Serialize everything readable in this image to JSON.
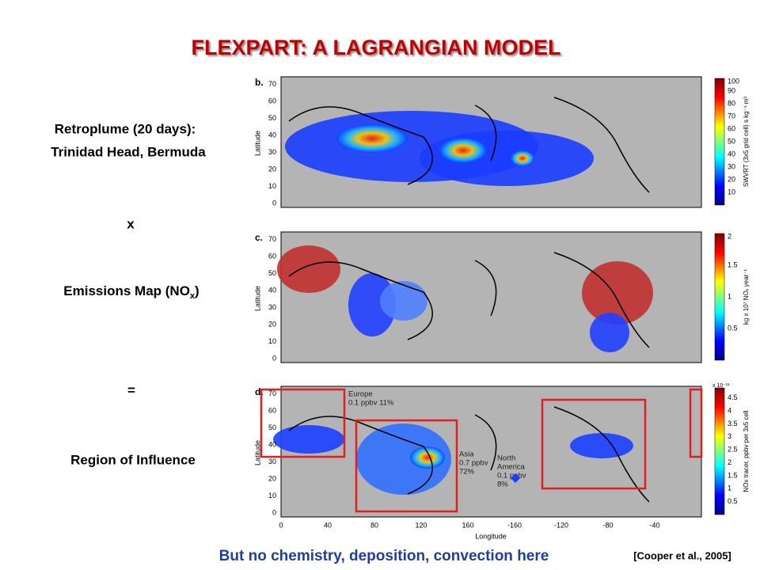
{
  "title": "FLEXPART: A LAGRANGIAN MODEL",
  "left": {
    "retroplume": [
      "Retroplume (20 days):",
      "Trinidad Head, Bermuda"
    ],
    "times": "x",
    "emissions": [
      "Emissions Map (NO",
      "x",
      ")"
    ],
    "equals": "=",
    "region": "Region of Influence"
  },
  "panels": [
    {
      "letter": "b.",
      "y_label": "Latitude",
      "y_ticks": [
        70,
        60,
        50,
        40,
        30,
        20,
        10,
        0
      ],
      "colorbar_label": "SWVRT (3x5 grid cell) s kg⁻¹ m³",
      "colorbar_ticks": [
        100,
        90,
        80,
        70,
        60,
        50,
        40,
        30,
        20,
        10
      ]
    },
    {
      "letter": "c.",
      "y_label": "Latitude",
      "y_ticks": [
        70,
        60,
        50,
        40,
        30,
        20,
        10,
        0
      ],
      "colorbar_label": "kg x 10⁷ NOₓ year⁻¹",
      "colorbar_ticks": [
        2,
        1.5,
        1,
        0.5
      ]
    },
    {
      "letter": "d.",
      "y_label": "Latitude",
      "y_ticks": [
        70,
        60,
        50,
        40,
        30,
        20,
        10,
        0
      ],
      "colorbar_label": "NOx tracer, ppbv per 3x5 cell",
      "colorbar_exponent": "x 10⁻¹¹",
      "colorbar_ticks": [
        4.5,
        4,
        3.5,
        3,
        2.5,
        2,
        1.5,
        1,
        0.5
      ],
      "regions": [
        {
          "lines": [
            "Europe",
            "0.1 ppbv   11%"
          ]
        },
        {
          "lines": [
            "Asia",
            "0.7 ppbv",
            "72%"
          ]
        },
        {
          "lines": [
            "North",
            "America",
            "0.1 ppbv",
            "8%"
          ]
        }
      ]
    }
  ],
  "x_axis": {
    "label": "Longitude",
    "ticks": [
      0,
      40,
      80,
      120,
      160,
      -160,
      -120,
      -80,
      -40
    ]
  },
  "footer": "But no chemistry, deposition, convection here",
  "citation": "[Cooper et al., 2005]"
}
